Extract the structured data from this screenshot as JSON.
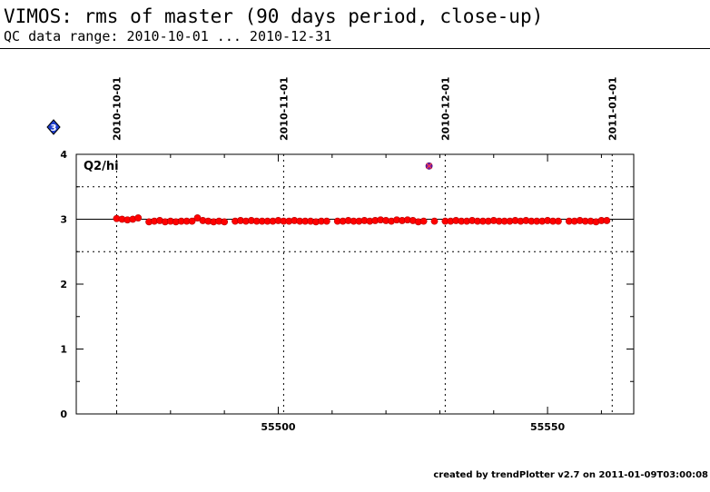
{
  "header": {
    "title": "VIMOS: rms of master (90 days period, close-up)",
    "subtitle": "QC data range: 2010-10-01 ... 2010-12-31"
  },
  "footer": {
    "credit": "created by trendPlotter v2.7 on 2011-01-09T03:00:08"
  },
  "chart_data": {
    "type": "scatter",
    "panel_label": "Q2/hi",
    "quadrant_marker": "3",
    "xlim": [
      55462.5,
      55566
    ],
    "ylim": [
      0,
      4
    ],
    "x_ticks": [
      55500,
      55550
    ],
    "x_tick_labels": [
      "55500",
      "55550"
    ],
    "y_ticks": [
      0,
      1,
      2,
      3,
      4
    ],
    "y_tick_labels": [
      "0",
      "1",
      "2",
      "3",
      "4"
    ],
    "date_markers": [
      {
        "label": "2010-10-01",
        "x": 55470
      },
      {
        "label": "2010-11-01",
        "x": 55501
      },
      {
        "label": "2010-12-01",
        "x": 55531
      },
      {
        "label": "2011-01-01",
        "x": 55562
      }
    ],
    "reference_line": 3.0,
    "threshold_lines": [
      2.5,
      3.5
    ],
    "colors": {
      "points": "#ff0000",
      "point_edge": "#b40000",
      "outlier": "#7a1aa8",
      "marker": "#1f3fd0"
    },
    "series": [
      {
        "x": [
          55470.0,
          55471.0,
          55472.0,
          55473.0,
          55474.0,
          55476.0,
          55477.0,
          55478.0,
          55479.0,
          55480.0,
          55481.0,
          55482.0,
          55483.0,
          55484.0,
          55485.0,
          55486.0,
          55487.0,
          55488.0,
          55489.0,
          55490.0,
          55492.0,
          55493.0,
          55494.0,
          55495.0,
          55496.0,
          55497.0,
          55498.0,
          55499.0,
          55500.0,
          55501.0,
          55502.0,
          55503.0,
          55504.0,
          55505.0,
          55506.0,
          55507.0,
          55508.0,
          55509.0,
          55511.0,
          55512.0,
          55513.0,
          55514.0,
          55515.0,
          55516.0,
          55517.0,
          55518.0,
          55519.0,
          55520.0,
          55521.0,
          55522.0,
          55523.0,
          55524.0,
          55525.0,
          55526.0,
          55527.0,
          55529.0,
          55531.0,
          55532.0,
          55533.0,
          55534.0,
          55535.0,
          55536.0,
          55537.0,
          55538.0,
          55539.0,
          55540.0,
          55541.0,
          55542.0,
          55543.0,
          55544.0,
          55545.0,
          55546.0,
          55547.0,
          55548.0,
          55549.0,
          55550.0,
          55551.0,
          55552.0,
          55554.0,
          55555.0,
          55556.0,
          55557.0,
          55558.0,
          55559.0,
          55560.0,
          55561.0
        ],
        "y": [
          3.01,
          3.0,
          2.99,
          3.0,
          3.02,
          2.96,
          2.97,
          2.98,
          2.96,
          2.97,
          2.96,
          2.97,
          2.97,
          2.97,
          3.02,
          2.98,
          2.97,
          2.96,
          2.97,
          2.96,
          2.97,
          2.98,
          2.97,
          2.98,
          2.97,
          2.97,
          2.97,
          2.97,
          2.98,
          2.97,
          2.97,
          2.98,
          2.97,
          2.97,
          2.97,
          2.96,
          2.97,
          2.97,
          2.97,
          2.97,
          2.98,
          2.97,
          2.97,
          2.98,
          2.97,
          2.98,
          2.99,
          2.98,
          2.97,
          2.99,
          2.98,
          2.99,
          2.98,
          2.96,
          2.97,
          2.97,
          2.97,
          2.97,
          2.98,
          2.97,
          2.97,
          2.98,
          2.97,
          2.97,
          2.97,
          2.98,
          2.97,
          2.97,
          2.97,
          2.98,
          2.97,
          2.98,
          2.97,
          2.97,
          2.97,
          2.98,
          2.97,
          2.97,
          2.97,
          2.97,
          2.98,
          2.97,
          2.97,
          2.96,
          2.98,
          2.98
        ]
      }
    ],
    "outliers": [
      {
        "x": 55528.0,
        "y": 3.82
      }
    ]
  }
}
